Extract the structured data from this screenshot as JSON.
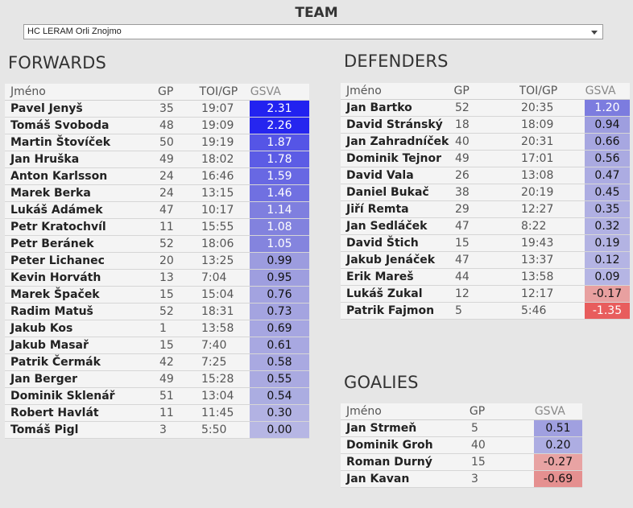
{
  "header": {
    "title": "TEAM",
    "team_select": "HC LERAM Orli Znojmo"
  },
  "forwards": {
    "title": "FORWARDS",
    "columns": [
      "Jméno",
      "GP",
      "TOI/GP",
      "GSVA"
    ],
    "rows": [
      {
        "name": "Pavel Jenyš",
        "gp": "35",
        "toi": "19:07",
        "gsva": "2.31",
        "color": "#2222f0",
        "text": "#ffffff"
      },
      {
        "name": "Tomáš Svoboda",
        "gp": "48",
        "toi": "19:09",
        "gsva": "2.26",
        "color": "#2626ef",
        "text": "#ffffff"
      },
      {
        "name": "Martin Štovíček",
        "gp": "50",
        "toi": "19:19",
        "gsva": "1.87",
        "color": "#5555e6",
        "text": "#ffffff"
      },
      {
        "name": "Jan Hruška",
        "gp": "49",
        "toi": "18:02",
        "gsva": "1.78",
        "color": "#5c5ce5",
        "text": "#ffffff"
      },
      {
        "name": "Anton Karlsson",
        "gp": "24",
        "toi": "16:46",
        "gsva": "1.59",
        "color": "#6868e3",
        "text": "#ffffff"
      },
      {
        "name": "Marek Berka",
        "gp": "24",
        "toi": "13:15",
        "gsva": "1.46",
        "color": "#7070e1",
        "text": "#ffffff"
      },
      {
        "name": "Lukáš Adámek",
        "gp": "47",
        "toi": "10:17",
        "gsva": "1.14",
        "color": "#7f7fdf",
        "text": "#ffffff"
      },
      {
        "name": "Petr Kratochvíl",
        "gp": "11",
        "toi": "15:55",
        "gsva": "1.08",
        "color": "#8282de",
        "text": "#ffffff"
      },
      {
        "name": "Petr Beránek",
        "gp": "52",
        "toi": "18:06",
        "gsva": "1.05",
        "color": "#8484de",
        "text": "#ffffff"
      },
      {
        "name": "Peter Lichanec",
        "gp": "20",
        "toi": "13:25",
        "gsva": "0.99",
        "color": "#9c9cdf",
        "text": "#111111"
      },
      {
        "name": "Kevin Horváth",
        "gp": "13",
        "toi": "7:04",
        "gsva": "0.95",
        "color": "#9e9edf",
        "text": "#111111"
      },
      {
        "name": "Marek Špaček",
        "gp": "15",
        "toi": "15:04",
        "gsva": "0.76",
        "color": "#a3a3e0",
        "text": "#111111"
      },
      {
        "name": "Radim Matuš",
        "gp": "52",
        "toi": "18:31",
        "gsva": "0.73",
        "color": "#a4a4e0",
        "text": "#111111"
      },
      {
        "name": "Jakub Kos",
        "gp": "1",
        "toi": "13:58",
        "gsva": "0.69",
        "color": "#a6a6e1",
        "text": "#111111"
      },
      {
        "name": "Jakub Masař",
        "gp": "15",
        "toi": "7:40",
        "gsva": "0.61",
        "color": "#a8a8e1",
        "text": "#111111"
      },
      {
        "name": "Patrik Čermák",
        "gp": "42",
        "toi": "7:25",
        "gsva": "0.58",
        "color": "#a9a9e1",
        "text": "#111111"
      },
      {
        "name": "Jan Berger",
        "gp": "49",
        "toi": "15:28",
        "gsva": "0.55",
        "color": "#aaaae1",
        "text": "#111111"
      },
      {
        "name": "Dominik Sklenář",
        "gp": "51",
        "toi": "13:04",
        "gsva": "0.54",
        "color": "#abade1",
        "text": "#111111"
      },
      {
        "name": "Robert Havlát",
        "gp": "11",
        "toi": "11:45",
        "gsva": "0.30",
        "color": "#b2b2e3",
        "text": "#111111"
      },
      {
        "name": "Tomáš Pigl",
        "gp": "3",
        "toi": "5:50",
        "gsva": "0.00",
        "color": "#b6b6e4",
        "text": "#111111"
      }
    ]
  },
  "defenders": {
    "title": "DEFENDERS",
    "columns": [
      "Jméno",
      "GP",
      "TOI/GP",
      "GSVA"
    ],
    "rows": [
      {
        "name": "Jan Bartko",
        "gp": "52",
        "toi": "20:35",
        "gsva": "1.20",
        "color": "#7c7cdf",
        "text": "#ffffff"
      },
      {
        "name": "David Stránský",
        "gp": "18",
        "toi": "18:09",
        "gsva": "0.94",
        "color": "#9e9edf",
        "text": "#111111"
      },
      {
        "name": "Jan Zahradníček",
        "gp": "40",
        "toi": "20:31",
        "gsva": "0.66",
        "color": "#a7a7e1",
        "text": "#111111"
      },
      {
        "name": "Dominik Tejnor",
        "gp": "49",
        "toi": "17:01",
        "gsva": "0.56",
        "color": "#aaaae1",
        "text": "#111111"
      },
      {
        "name": "David Vala",
        "gp": "26",
        "toi": "13:08",
        "gsva": "0.47",
        "color": "#acace2",
        "text": "#111111"
      },
      {
        "name": "Daniel Bukač",
        "gp": "38",
        "toi": "20:19",
        "gsva": "0.45",
        "color": "#adade2",
        "text": "#111111"
      },
      {
        "name": "Jiří Remta",
        "gp": "29",
        "toi": "12:27",
        "gsva": "0.35",
        "color": "#b0b0e3",
        "text": "#111111"
      },
      {
        "name": "Jan Sedláček",
        "gp": "47",
        "toi": "8:22",
        "gsva": "0.32",
        "color": "#b1b1e3",
        "text": "#111111"
      },
      {
        "name": "David Štich",
        "gp": "15",
        "toi": "19:43",
        "gsva": "0.19",
        "color": "#b3b3e3",
        "text": "#111111"
      },
      {
        "name": "Jakub Jenáček",
        "gp": "47",
        "toi": "13:37",
        "gsva": "0.12",
        "color": "#b4b4e4",
        "text": "#111111"
      },
      {
        "name": "Erik Mareš",
        "gp": "44",
        "toi": "13:58",
        "gsva": "0.09",
        "color": "#b5b5e4",
        "text": "#111111"
      },
      {
        "name": "Lukáš Zukal",
        "gp": "12",
        "toi": "12:17",
        "gsva": "-0.17",
        "color": "#e8a0a0",
        "text": "#111111"
      },
      {
        "name": "Patrik Fajmon",
        "gp": "5",
        "toi": "5:46",
        "gsva": "-1.35",
        "color": "#e85d5d",
        "text": "#ffffff"
      }
    ]
  },
  "goalies": {
    "title": "GOALIES",
    "columns": [
      "Jméno",
      "GP",
      "GSVA"
    ],
    "rows": [
      {
        "name": "Jan Strmeň",
        "gp": "5",
        "gsva": "0.51",
        "color": "#a0a0e0",
        "text": "#111111"
      },
      {
        "name": "Dominik Groh",
        "gp": "40",
        "gsva": "0.20",
        "color": "#adade2",
        "text": "#111111"
      },
      {
        "name": "Roman Durný",
        "gp": "15",
        "gsva": "-0.27",
        "color": "#e8a3a3",
        "text": "#111111"
      },
      {
        "name": "Jan Kavan",
        "gp": "3",
        "gsva": "-0.69",
        "color": "#e59090",
        "text": "#111111"
      }
    ]
  }
}
